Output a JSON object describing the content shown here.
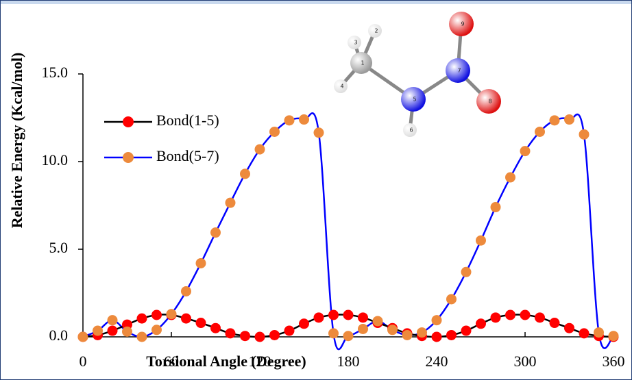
{
  "chart_data": {
    "type": "line",
    "x_label": "Torsional Angle (Degree)",
    "y_label": "Relative Energy (Kcal/mol)",
    "xlim": [
      0,
      360
    ],
    "xticks": [
      0,
      60,
      120,
      180,
      240,
      300,
      360
    ],
    "ylim": [
      0,
      15
    ],
    "yticks": [
      {
        "value": 0,
        "label": "0.0"
      },
      {
        "value": 5,
        "label": "5.0"
      },
      {
        "value": 10,
        "label": "10.0"
      },
      {
        "value": 15,
        "label": "15.0"
      }
    ],
    "x": [
      0,
      10,
      20,
      30,
      40,
      50,
      60,
      70,
      80,
      90,
      100,
      110,
      120,
      130,
      140,
      150,
      160,
      170,
      180,
      190,
      200,
      210,
      220,
      230,
      240,
      250,
      260,
      270,
      280,
      290,
      300,
      310,
      320,
      330,
      340,
      350,
      360
    ],
    "series": [
      {
        "name": "Bond(1-5)",
        "color": "#ff0000",
        "line_color": "#000000",
        "values": [
          0,
          0.1,
          0.35,
          0.7,
          1.05,
          1.25,
          1.25,
          1.05,
          0.8,
          0.5,
          0.2,
          0.05,
          0,
          0.1,
          0.35,
          0.75,
          1.1,
          1.25,
          1.25,
          1.1,
          0.8,
          0.5,
          0.2,
          0.05,
          0,
          0.1,
          0.35,
          0.75,
          1.1,
          1.25,
          1.25,
          1.1,
          0.8,
          0.5,
          0.2,
          0.05,
          0
        ]
      },
      {
        "name": "Bond(5-7)",
        "color": "#ed8a3c",
        "line_color": "#0000ff",
        "values": [
          0,
          0.35,
          0.95,
          0.3,
          0,
          0.4,
          1.3,
          2.6,
          4.2,
          5.95,
          7.65,
          9.3,
          10.7,
          11.7,
          12.35,
          12.4,
          11.65,
          0.2,
          0.05,
          0.45,
          0.9,
          0.4,
          0.1,
          0.25,
          0.95,
          2.15,
          3.7,
          5.5,
          7.4,
          9.1,
          10.6,
          11.7,
          12.35,
          12.4,
          11.55,
          0.25,
          0.05
        ]
      }
    ],
    "legend": "upper left"
  },
  "molecule": {
    "atoms": [
      "1",
      "2",
      "3",
      "4",
      "5",
      "6",
      "7",
      "8",
      "9"
    ]
  }
}
